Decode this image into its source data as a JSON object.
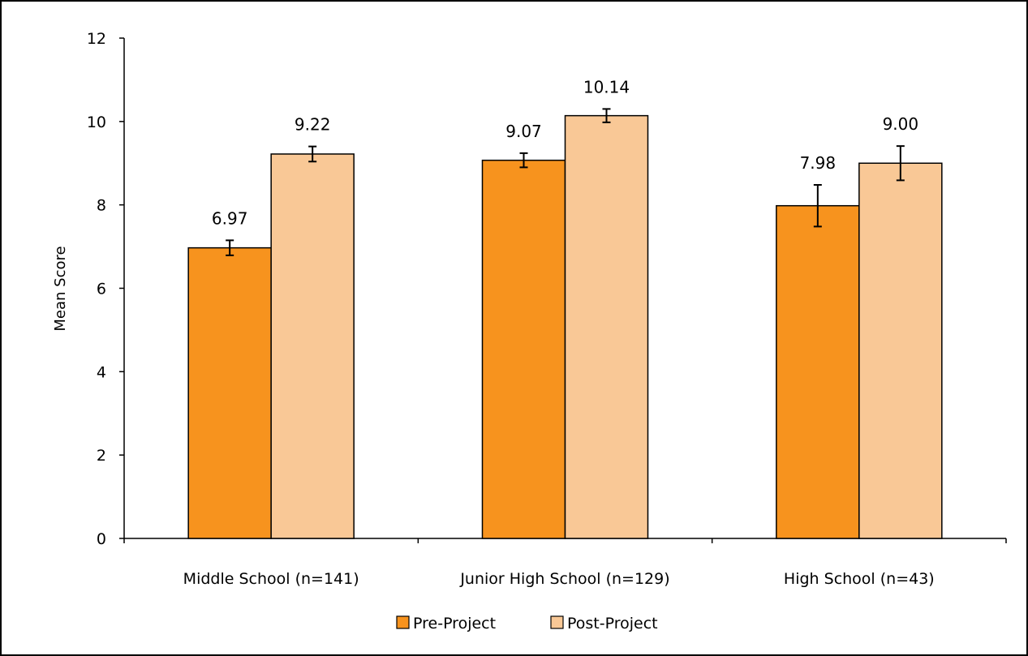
{
  "chart_data": {
    "type": "bar",
    "title": "",
    "xlabel": "",
    "ylabel": "Mean Score",
    "ylim": [
      0,
      12
    ],
    "yticks": [
      0,
      2,
      4,
      6,
      8,
      10,
      12
    ],
    "categories": [
      "Middle School (n=141)",
      "Junior High School (n=129)",
      "High School (n=43)"
    ],
    "series": [
      {
        "name": "Pre-Project",
        "color": "#F7931E",
        "values": [
          6.97,
          9.07,
          7.98
        ],
        "labels": [
          "6.97",
          "9.07",
          "7.98"
        ],
        "error": [
          0.18,
          0.17,
          0.5
        ]
      },
      {
        "name": "Post-Project",
        "color": "#F9C896",
        "values": [
          9.22,
          10.14,
          9.0
        ],
        "labels": [
          "9.22",
          "10.14",
          "9.00"
        ],
        "error": [
          0.18,
          0.16,
          0.41
        ]
      }
    ],
    "legend_position": "bottom",
    "grid": false
  }
}
